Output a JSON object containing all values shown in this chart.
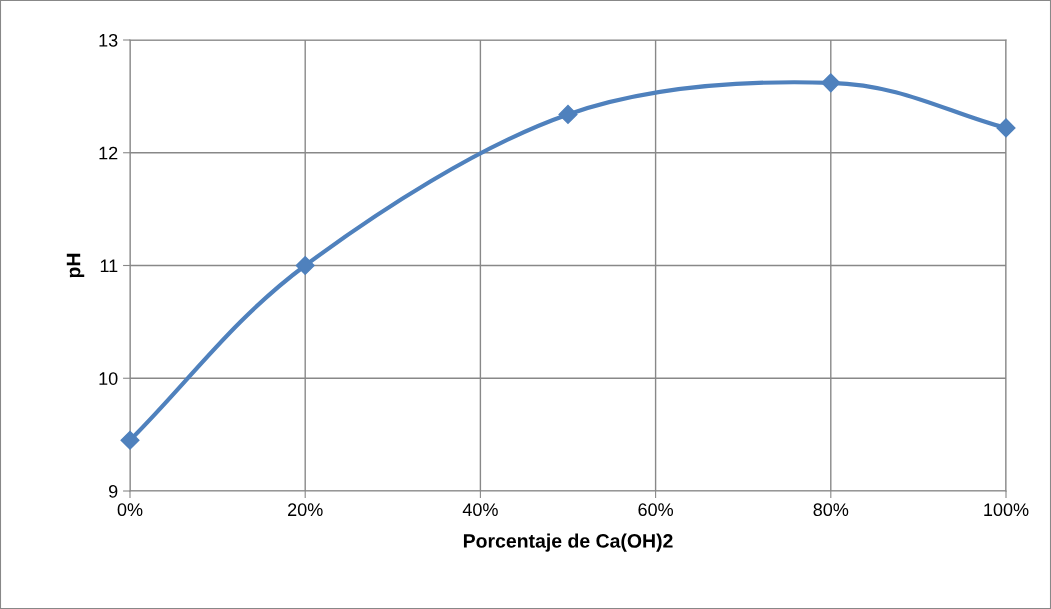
{
  "chart_data": {
    "type": "line",
    "xlabel": "Porcentaje de Ca(OH)2",
    "ylabel": "pH",
    "x": [
      0,
      20,
      50,
      80,
      100
    ],
    "series": [
      {
        "color": "#4f81bd",
        "values": [
          9.45,
          11.0,
          12.34,
          12.62,
          12.22
        ]
      }
    ],
    "xlim": [
      0,
      100
    ],
    "xticks": [
      {
        "value": 0,
        "label": "0%"
      },
      {
        "value": 20,
        "label": "20%"
      },
      {
        "value": 40,
        "label": "40%"
      },
      {
        "value": 60,
        "label": "60%"
      },
      {
        "value": 80,
        "label": "80%"
      },
      {
        "value": 100,
        "label": "100%"
      }
    ],
    "ylim": [
      9,
      13
    ],
    "yticks": [
      9,
      10,
      11,
      12,
      13
    ],
    "grid": true,
    "marker": "diamond",
    "line_style": "solid"
  }
}
